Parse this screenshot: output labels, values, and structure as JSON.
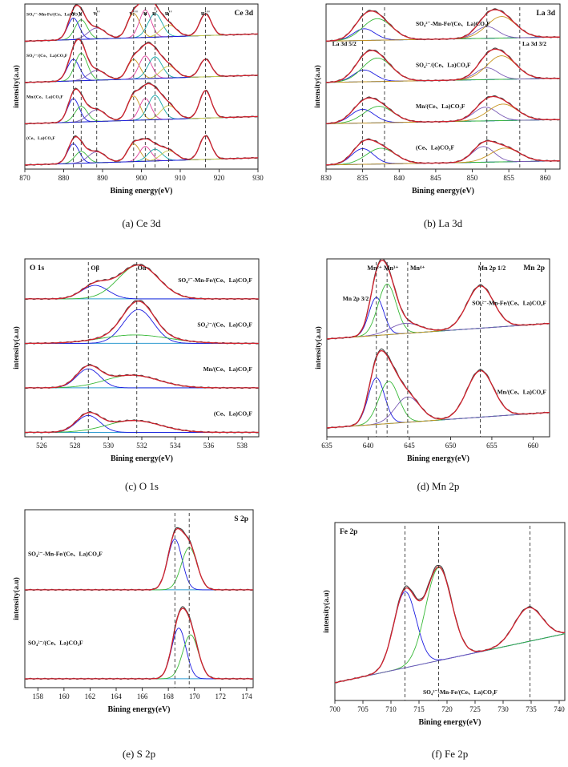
{
  "figure": {
    "colors": {
      "envelope": "#d2222e",
      "raw": "#3f3f3f",
      "background": "#2f9bd1",
      "axis": "#222222",
      "peak_palette": [
        "#1b1be0",
        "#39b939",
        "#7a5ab5",
        "#c8961f",
        "#e0409c",
        "#16a6a6",
        "#c8c84a"
      ],
      "highlight": "#f5ee9a"
    }
  },
  "chart_data": [
    {
      "id": "ce3d",
      "type": "line",
      "caption": "(a) Ce 3d",
      "title": "Ce 3d",
      "xlabel": "Bining energy(eV)",
      "ylabel": "intensity(a.u)",
      "xlim": [
        870,
        930
      ],
      "xticks": [
        870,
        880,
        890,
        900,
        910,
        920,
        930
      ],
      "baseline_tilt": 0.35,
      "dashed_lines": [
        882.5,
        884.5,
        888.5,
        898.0,
        901.0,
        903.5,
        907.0,
        916.5
      ],
      "peak_labels": [
        {
          "text": "v",
          "x": 882.5
        },
        {
          "text": "v'",
          "x": 884.5
        },
        {
          "text": "v''",
          "x": 888.5
        },
        {
          "text": "v'''",
          "x": 898.0
        },
        {
          "text": "u",
          "x": 901.0
        },
        {
          "text": "u'",
          "x": 903.5
        },
        {
          "text": "u''",
          "x": 907.0
        },
        {
          "text": "u'''",
          "x": 916.5
        }
      ],
      "series": [
        {
          "name": "SO₄²⁻-Mn-Fe/(Ce、La)CO₃F",
          "peaks": [
            [
              882.5,
              0.55,
              1.5
            ],
            [
              884.5,
              0.5,
              1.6
            ],
            [
              888.5,
              0.28,
              2.2
            ],
            [
              898.0,
              0.62,
              1.6
            ],
            [
              901.0,
              0.7,
              1.5
            ],
            [
              903.5,
              0.6,
              1.8
            ],
            [
              907.0,
              0.3,
              2.0
            ],
            [
              916.5,
              0.55,
              1.5
            ]
          ]
        },
        {
          "name": "SO₄²⁻/(Ce、La)CO₃F",
          "peaks": [
            [
              882.5,
              0.55,
              1.6
            ],
            [
              884.5,
              0.7,
              1.6
            ],
            [
              888.5,
              0.25,
              2.2
            ],
            [
              898.0,
              0.5,
              1.6
            ],
            [
              901.0,
              0.58,
              1.6
            ],
            [
              903.5,
              0.55,
              1.8
            ],
            [
              907.0,
              0.3,
              2.0
            ],
            [
              916.5,
              0.45,
              1.5
            ]
          ]
        },
        {
          "name": "Mn/(Ce、La)CO₃F",
          "peaks": [
            [
              882.5,
              0.6,
              1.5
            ],
            [
              884.5,
              0.4,
              1.6
            ],
            [
              888.5,
              0.3,
              2.2
            ],
            [
              898.0,
              0.62,
              1.6
            ],
            [
              901.0,
              0.55,
              1.5
            ],
            [
              903.5,
              0.62,
              1.8
            ],
            [
              907.0,
              0.35,
              2.0
            ],
            [
              916.5,
              0.7,
              1.5
            ]
          ]
        },
        {
          "name": "(Ce、La)CO₃F",
          "peaks": [
            [
              882.5,
              0.5,
              1.5
            ],
            [
              884.5,
              0.3,
              1.6
            ],
            [
              888.5,
              0.28,
              2.2
            ],
            [
              898.0,
              0.45,
              1.6
            ],
            [
              901.0,
              0.38,
              1.5
            ],
            [
              903.5,
              0.3,
              1.8
            ],
            [
              907.0,
              0.25,
              2.0
            ],
            [
              916.5,
              0.6,
              1.5
            ]
          ]
        }
      ]
    },
    {
      "id": "la3d",
      "type": "line",
      "caption": "(b) La 3d",
      "title": "La 3d",
      "xlabel": "Bining energy(eV)",
      "ylabel": "intensity(a.u)",
      "xlim": [
        830,
        862
      ],
      "xticks": [
        830,
        835,
        840,
        845,
        850,
        855,
        860
      ],
      "baseline_tilt": 0.2,
      "dashed_lines": [
        835.0,
        838.0,
        852.0,
        856.5
      ],
      "annotations": [
        {
          "text": "La 3d 5/2",
          "x": 832.5
        },
        {
          "text": "La 3d 3/2",
          "x": 858.5
        }
      ],
      "series": [
        {
          "name": "SO₄²⁻-Mn-Fe/(Ce、La)CO₃F",
          "peaks": [
            [
              835.2,
              0.3,
              1.5
            ],
            [
              837.0,
              0.55,
              2.0
            ],
            [
              852.0,
              0.3,
              1.5
            ],
            [
              854.0,
              0.55,
              2.0
            ]
          ]
        },
        {
          "name": "SO₄²⁻/(Ce、La)CO₃F",
          "peaks": [
            [
              835.2,
              0.3,
              1.5
            ],
            [
              837.0,
              0.6,
              2.0
            ],
            [
              852.0,
              0.3,
              1.5
            ],
            [
              854.0,
              0.6,
              2.0
            ]
          ]
        },
        {
          "name": "Mn/(Ce、La)CO₃F",
          "peaks": [
            [
              835.0,
              0.35,
              1.6
            ],
            [
              837.2,
              0.42,
              2.0
            ],
            [
              851.8,
              0.35,
              1.6
            ],
            [
              854.2,
              0.42,
              2.0
            ]
          ]
        },
        {
          "name": "(Ce、La)CO₃F",
          "peaks": [
            [
              835.0,
              0.4,
              1.5
            ],
            [
              837.5,
              0.4,
              2.0
            ],
            [
              851.5,
              0.4,
              1.5
            ],
            [
              854.5,
              0.35,
              2.0
            ]
          ]
        }
      ]
    },
    {
      "id": "o1s",
      "type": "line",
      "caption": "(c) O 1s",
      "title": "O 1s",
      "xlabel": "Bining energy(eV)",
      "ylabel": "intensity(a.u)",
      "xlim": [
        525,
        539
      ],
      "xticks": [
        526,
        528,
        530,
        532,
        534,
        536,
        538
      ],
      "baseline_tilt": 0,
      "dashed_lines": [
        528.8,
        531.7
      ],
      "peak_labels": [
        {
          "text": "Oβ",
          "x": 529.2
        },
        {
          "text": "Oα",
          "x": 532.0
        }
      ],
      "series": [
        {
          "name": "SO₄²⁻-Mn-Fe/(Ce、La)CO₃F",
          "peaks": [
            [
              529.2,
              0.32,
              0.8
            ],
            [
              531.8,
              0.8,
              1.2
            ]
          ]
        },
        {
          "name": "SO₄²⁻/(Ce、La)CO₃F",
          "peaks": [
            [
              531.8,
              0.8,
              0.9
            ],
            [
              531.6,
              0.2,
              2.0
            ]
          ]
        },
        {
          "name": "Mn/(Ce、La)CO₃F",
          "peaks": [
            [
              528.8,
              0.45,
              0.7
            ],
            [
              531.4,
              0.3,
              1.6
            ]
          ]
        },
        {
          "name": "(Ce、La)CO₃F",
          "peaks": [
            [
              528.8,
              0.4,
              0.7
            ],
            [
              531.5,
              0.28,
              1.6
            ]
          ]
        }
      ]
    },
    {
      "id": "mn2p",
      "type": "line",
      "caption": "(d) Mn 2p",
      "title": "Mn 2p",
      "xlabel": "Bining energy(eV)",
      "ylabel": "intensity(a.u)",
      "xlim": [
        635,
        662
      ],
      "xticks": [
        635,
        640,
        645,
        650,
        655,
        660
      ],
      "baseline_tilt": 0.35,
      "dashed_lines": [
        641.0,
        642.3,
        644.8,
        653.6
      ],
      "peak_labels": [
        {
          "text": "Mn²⁺",
          "x": 640.8
        },
        {
          "text": "Mn³⁺",
          "x": 642.8
        },
        {
          "text": "Mn⁴⁺",
          "x": 646.0
        },
        {
          "text": "Mn 2p 1/2",
          "x": 655.0
        }
      ],
      "annotations": [
        {
          "text": "Mn 2p 3/2",
          "x": 638.5
        }
      ],
      "series": [
        {
          "name": "SO₄²⁻-Mn-Fe/(Ce、La)CO₃F",
          "peaks": [
            [
              641.0,
              0.45,
              0.9
            ],
            [
              642.3,
              0.6,
              1.1
            ],
            [
              644.5,
              0.12,
              1.8
            ],
            [
              653.6,
              0.5,
              1.6
            ]
          ]
        },
        {
          "name": "Mn/(Ce、La)CO₃F",
          "peaks": [
            [
              641.0,
              0.55,
              1.0
            ],
            [
              642.5,
              0.5,
              1.2
            ],
            [
              644.8,
              0.3,
              1.5
            ],
            [
              653.6,
              0.55,
              1.6
            ]
          ]
        }
      ]
    },
    {
      "id": "s2p",
      "type": "line",
      "caption": "(e) S 2p",
      "title": "S 2p",
      "xlabel": "Bining energy(eV)",
      "ylabel": "intensity(a.u)",
      "xlim": [
        157,
        174.5
      ],
      "xticks": [
        158,
        160,
        162,
        164,
        166,
        168,
        170,
        172,
        174
      ],
      "baseline_tilt": 0,
      "dashed_lines": [
        168.5,
        169.6
      ],
      "series": [
        {
          "name": "SO₄²⁻-Mn-Fe/(Ce、La)CO₃F",
          "peaks": [
            [
              168.5,
              0.6,
              0.55
            ],
            [
              169.6,
              0.5,
              0.6
            ]
          ]
        },
        {
          "name": "SO₄²⁻/(Ce、La)CO₃F",
          "peaks": [
            [
              168.8,
              0.6,
              0.55
            ],
            [
              169.7,
              0.52,
              0.6
            ]
          ]
        }
      ]
    },
    {
      "id": "fe2p",
      "type": "line",
      "caption": "(f) Fe 2p",
      "title": "Fe 2p",
      "xlabel": "Bining energy(eV)",
      "ylabel": "intensity(a.u)",
      "xlim": [
        700,
        741
      ],
      "xticks": [
        700,
        705,
        710,
        715,
        720,
        725,
        730,
        735,
        740
      ],
      "baseline_tilt": 0.55,
      "dashed_lines": [
        712.5,
        718.5,
        734.8
      ],
      "series": [
        {
          "name": "SO₄²⁻-Mn-Fe/(Ce、La)CO₃F",
          "peaks": [
            [
              712.5,
              0.45,
              2.0
            ],
            [
              718.5,
              0.55,
              2.3
            ],
            [
              734.5,
              0.2,
              2.5
            ]
          ]
        }
      ]
    }
  ]
}
